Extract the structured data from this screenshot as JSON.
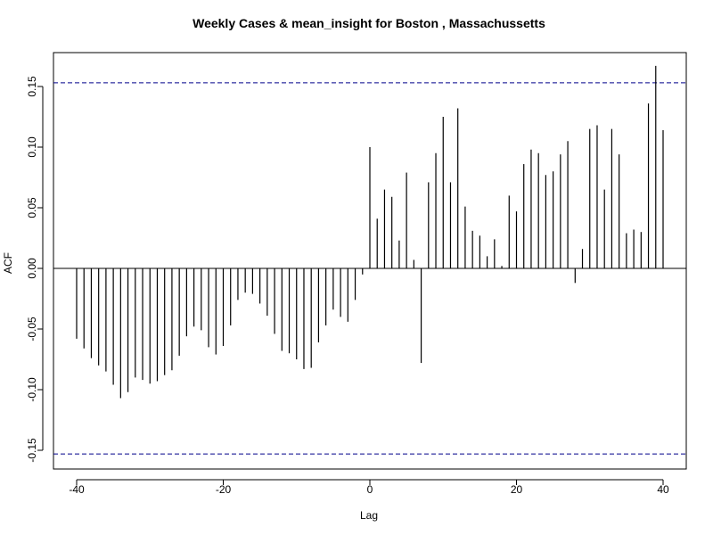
{
  "chart_data": {
    "type": "bar",
    "title": "Weekly Cases & mean_insight for Boston , Massachussetts",
    "xlabel": "Lag",
    "ylabel": "ACF",
    "xlim": [
      -40,
      40
    ],
    "ylim": [
      -0.165,
      0.17
    ],
    "x_ticks": [
      -40,
      -20,
      0,
      20,
      40
    ],
    "x_tick_labels": [
      "-40",
      "-20",
      "0",
      "20",
      "40"
    ],
    "y_ticks": [
      -0.15,
      -0.1,
      -0.05,
      0.0,
      0.05,
      0.1,
      0.15
    ],
    "y_tick_labels": [
      "-0.15",
      "-0.10",
      "-0.05",
      "0.00",
      "0.05",
      "0.10",
      "0.15"
    ],
    "confidence_bound": 0.153,
    "confidence_line_color": "#00008b",
    "bar_color": "#000000",
    "series": [
      {
        "x": [
          -40,
          -39,
          -38,
          -37,
          -36,
          -35,
          -34,
          -33,
          -32,
          -31,
          -30,
          -29,
          -28,
          -27,
          -26,
          -25,
          -24,
          -23,
          -22,
          -21,
          -20,
          -19,
          -18,
          -17,
          -16,
          -15,
          -14,
          -13,
          -12,
          -11,
          -10,
          -9,
          -8,
          -7,
          -6,
          -5,
          -4,
          -3,
          -2,
          -1,
          0,
          1,
          2,
          3,
          4,
          5,
          6,
          7,
          8,
          9,
          10,
          11,
          12,
          13,
          14,
          15,
          16,
          17,
          18,
          19,
          20,
          21,
          22,
          23,
          24,
          25,
          26,
          27,
          28,
          29,
          30,
          31,
          32,
          33,
          34,
          35,
          36,
          37,
          38,
          39,
          40
        ],
        "values": [
          -0.058,
          -0.066,
          -0.074,
          -0.08,
          -0.085,
          -0.096,
          -0.107,
          -0.102,
          -0.09,
          -0.092,
          -0.095,
          -0.093,
          -0.088,
          -0.084,
          -0.072,
          -0.056,
          -0.048,
          -0.051,
          -0.065,
          -0.071,
          -0.064,
          -0.047,
          -0.026,
          -0.02,
          -0.021,
          -0.029,
          -0.039,
          -0.054,
          -0.068,
          -0.07,
          -0.075,
          -0.083,
          -0.082,
          -0.061,
          -0.047,
          -0.034,
          -0.04,
          -0.044,
          -0.026,
          -0.005,
          0.1,
          0.041,
          0.065,
          0.059,
          0.023,
          0.079,
          0.007,
          -0.078,
          0.071,
          0.095,
          0.125,
          0.071,
          0.132,
          0.051,
          0.031,
          0.027,
          0.01,
          0.024,
          0.002,
          0.06,
          0.047,
          0.086,
          0.098,
          0.095,
          0.077,
          0.08,
          0.094,
          0.105,
          -0.012,
          0.016,
          0.115,
          0.118,
          0.065,
          0.115,
          0.094,
          0.029,
          0.032,
          0.03,
          0.136,
          0.167,
          0.114
        ]
      }
    ]
  }
}
